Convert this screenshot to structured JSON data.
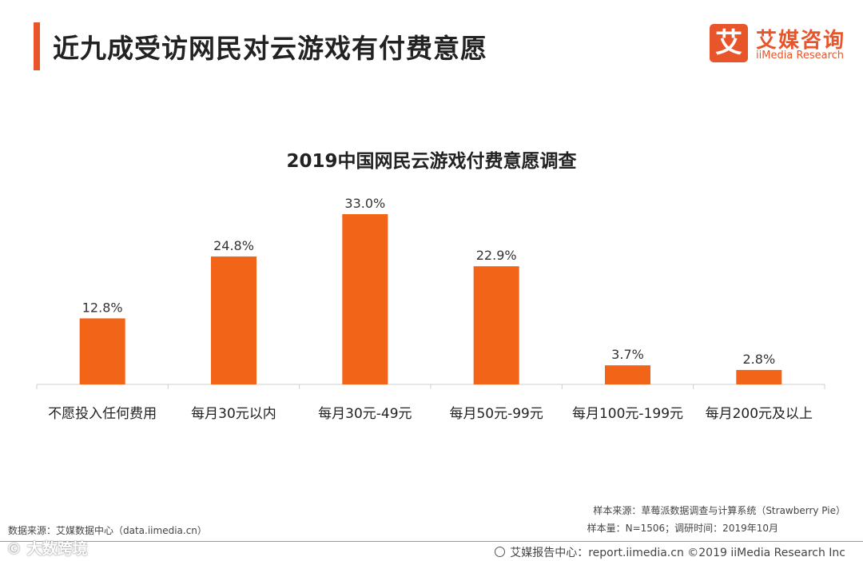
{
  "header": {
    "title": "近九成受访网民对云游戏有付费意愿",
    "logo_mark": "艾",
    "logo_cn": "艾媒咨询",
    "logo_en": "iiMedia Research"
  },
  "chart_data": {
    "type": "bar",
    "title": "2019中国网民云游戏付费意愿调查",
    "categories": [
      "不愿投入任何费用",
      "每月30元以内",
      "每月30元-49元",
      "每月50元-99元",
      "每月100元-199元",
      "每月200元及以上"
    ],
    "values": [
      12.8,
      24.8,
      33.0,
      22.9,
      3.7,
      2.8
    ],
    "value_labels": [
      "12.8%",
      "24.8%",
      "33.0%",
      "22.9%",
      "3.7%",
      "2.8%"
    ],
    "unit": "%",
    "xlabel": "",
    "ylabel": "",
    "ylim": [
      0,
      33.0
    ],
    "grid": false,
    "color": "#f26418"
  },
  "notes": {
    "data_source": "数据来源：艾媒数据中心（data.iimedia.cn）",
    "sample_source": "样本来源：草莓派数据调查与计算系统（Strawberry Pie）",
    "sample_size": "样本量：N=1506；调研时间：2019年10月"
  },
  "footer": {
    "center_text": "艾媒报告中心：report.iimedia.cn ©2019  iiMedia Research  Inc",
    "watermark": "© 大数跨境"
  },
  "colors": {
    "accent": "#e8552b",
    "bar": "#f26418"
  }
}
